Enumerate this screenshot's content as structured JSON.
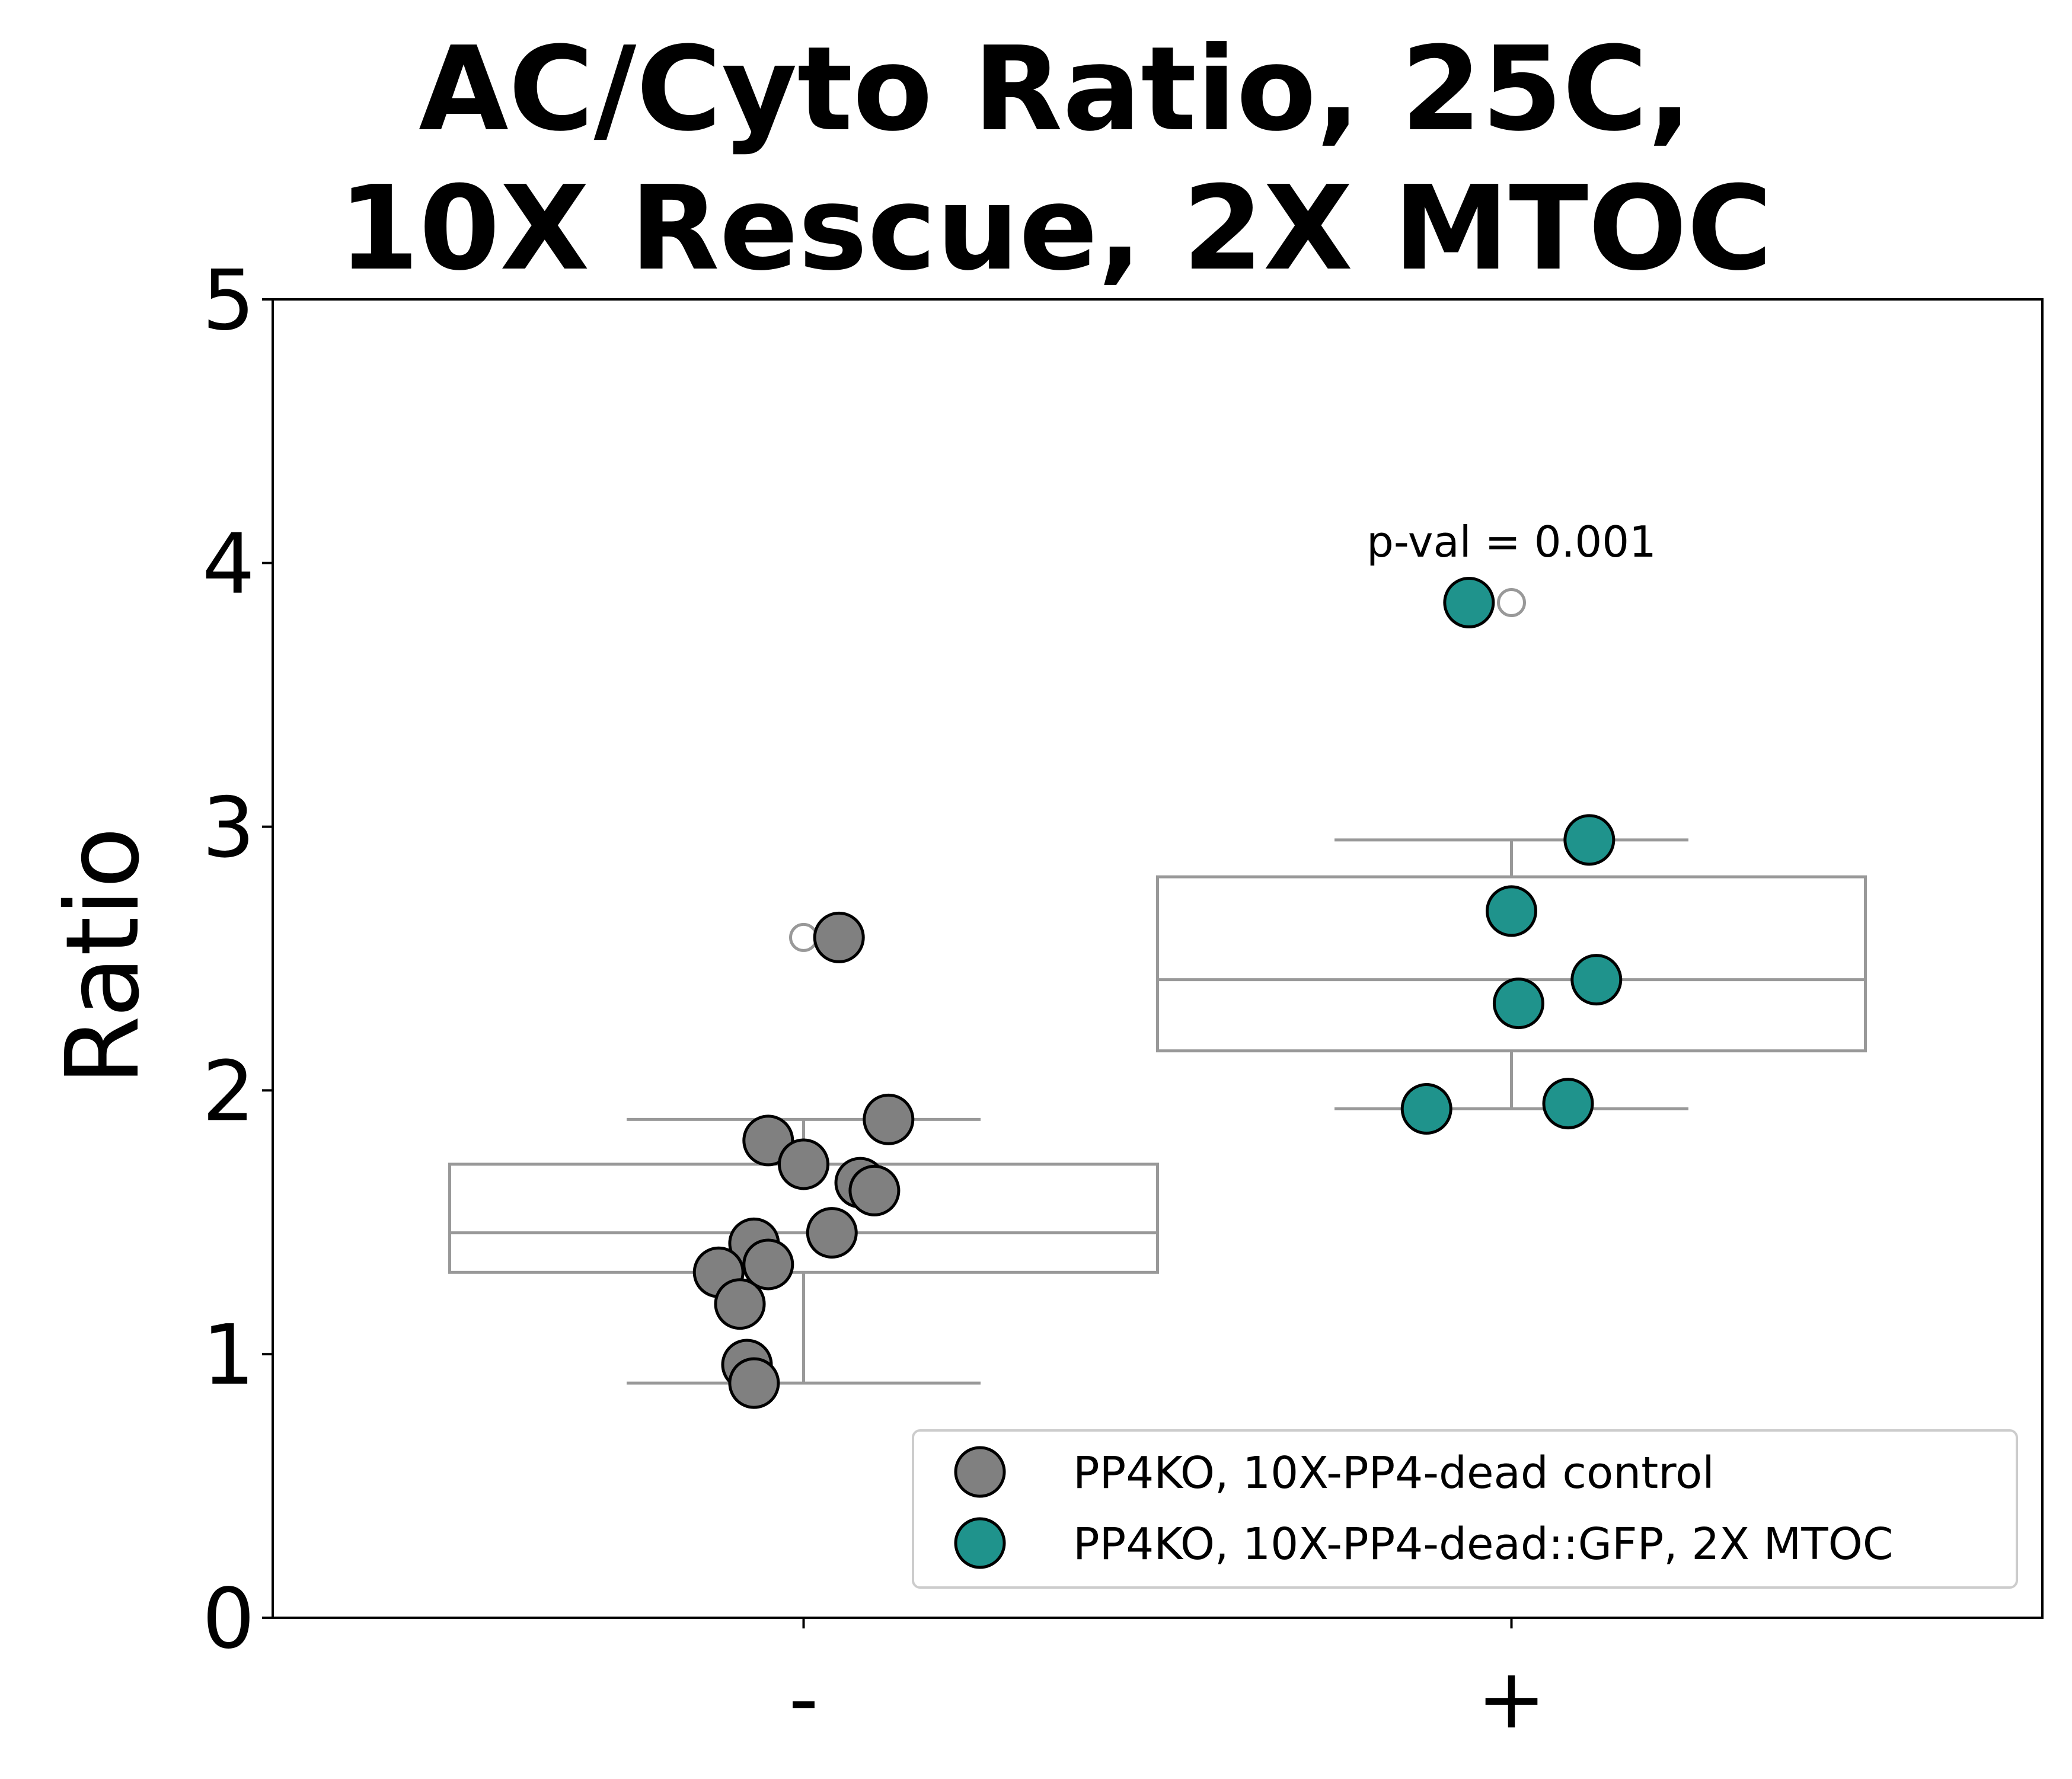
{
  "chart_data": {
    "type": "box",
    "title": [
      "AC/Cyto Ratio, 25C,",
      "10X Rescue, 2X MTOC"
    ],
    "xlabel": "",
    "ylabel": "Ratio",
    "categories": [
      "-",
      "+"
    ],
    "ylim": [
      0,
      5
    ],
    "yticks": [
      "0",
      "1",
      "2",
      "3",
      "4",
      "5"
    ],
    "grid": false,
    "legend_position": "lower-right",
    "annotations": [
      {
        "text": "p-val = 0.001",
        "category": "+",
        "y": 4.08
      }
    ],
    "boxes": [
      {
        "category": "-",
        "whisker_low": 0.89,
        "q1": 1.31,
        "median": 1.46,
        "q3": 1.72,
        "whisker_high": 1.89,
        "fliers": [
          2.58
        ]
      },
      {
        "category": "+",
        "whisker_low": 1.93,
        "q1": 2.15,
        "median": 2.42,
        "q3": 2.81,
        "whisker_high": 2.95,
        "fliers": [
          3.85
        ]
      }
    ],
    "series": [
      {
        "name": "PP4KO, 10X-PP4-dead control",
        "category": "-",
        "color": "#808080",
        "points": [
          {
            "jitter": 0.05,
            "y": 2.58
          },
          {
            "jitter": 0.12,
            "y": 1.89
          },
          {
            "jitter": -0.05,
            "y": 1.81
          },
          {
            "jitter": 0.0,
            "y": 1.72
          },
          {
            "jitter": 0.08,
            "y": 1.65
          },
          {
            "jitter": 0.1,
            "y": 1.62
          },
          {
            "jitter": 0.04,
            "y": 1.46
          },
          {
            "jitter": -0.07,
            "y": 1.42
          },
          {
            "jitter": -0.05,
            "y": 1.34
          },
          {
            "jitter": -0.12,
            "y": 1.31
          },
          {
            "jitter": -0.09,
            "y": 1.19
          },
          {
            "jitter": -0.08,
            "y": 0.96
          },
          {
            "jitter": -0.07,
            "y": 0.89
          }
        ]
      },
      {
        "name": "PP4KO, 10X-PP4-dead::GFP, 2X MTOC",
        "category": "+",
        "color": "#1f938c",
        "points": [
          {
            "jitter": -0.06,
            "y": 3.85
          },
          {
            "jitter": 0.11,
            "y": 2.95
          },
          {
            "jitter": 0.0,
            "y": 2.68
          },
          {
            "jitter": 0.12,
            "y": 2.42
          },
          {
            "jitter": 0.01,
            "y": 2.33
          },
          {
            "jitter": 0.08,
            "y": 1.95
          },
          {
            "jitter": -0.12,
            "y": 1.93
          }
        ]
      }
    ],
    "colors": {
      "box_line": "#999999",
      "marker_edge": "#000000"
    }
  }
}
